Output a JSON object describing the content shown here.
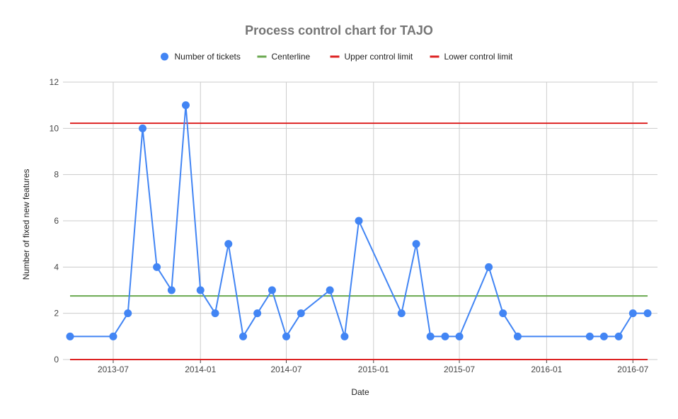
{
  "chart_data": {
    "type": "line",
    "title": "Process control chart for TAJO",
    "xlabel": "Date",
    "ylabel": "Number of fixed new features",
    "x_axis_type": "date",
    "xlim": [
      "2013-04-01",
      "2016-08-01"
    ],
    "ylim": [
      0,
      12
    ],
    "y_ticks": [
      0,
      2,
      4,
      6,
      8,
      10,
      12
    ],
    "x_ticks": [
      "2013-07",
      "2014-01",
      "2014-07",
      "2015-01",
      "2015-07",
      "2016-01",
      "2016-07"
    ],
    "grid": true,
    "legend_position": "top",
    "colors": {
      "tickets": "#4285f4",
      "centerline": "#6aa84f",
      "ucl": "#dd2222",
      "lcl": "#dd2222"
    },
    "legend": [
      {
        "label": "Number of tickets",
        "marker": "circle",
        "color": "#4285f4"
      },
      {
        "label": "Centerline",
        "marker": "line",
        "color": "#6aa84f"
      },
      {
        "label": "Upper control limit",
        "marker": "line",
        "color": "#dd2222"
      },
      {
        "label": "Lower control limit",
        "marker": "line",
        "color": "#dd2222"
      }
    ],
    "centerline": 2.75,
    "upper_control_limit": 10.22,
    "lower_control_limit": 0,
    "series": [
      {
        "name": "Number of tickets",
        "x": [
          "2013-04-01",
          "2013-07-01",
          "2013-08-01",
          "2013-09-01",
          "2013-10-01",
          "2013-11-01",
          "2013-12-01",
          "2014-01-01",
          "2014-02-01",
          "2014-03-01",
          "2014-04-01",
          "2014-05-01",
          "2014-06-01",
          "2014-07-01",
          "2014-08-01",
          "2014-10-01",
          "2014-11-01",
          "2014-12-01",
          "2015-03-01",
          "2015-04-01",
          "2015-05-01",
          "2015-06-01",
          "2015-07-01",
          "2015-09-01",
          "2015-10-01",
          "2015-11-01",
          "2016-04-01",
          "2016-05-01",
          "2016-06-01",
          "2016-07-01",
          "2016-08-01"
        ],
        "values": [
          1,
          1,
          2,
          10,
          4,
          3,
          11,
          3,
          2,
          5,
          1,
          2,
          3,
          1,
          2,
          3,
          1,
          6,
          2,
          5,
          1,
          1,
          1,
          4,
          2,
          1,
          1,
          1,
          1,
          2,
          2
        ]
      }
    ]
  }
}
